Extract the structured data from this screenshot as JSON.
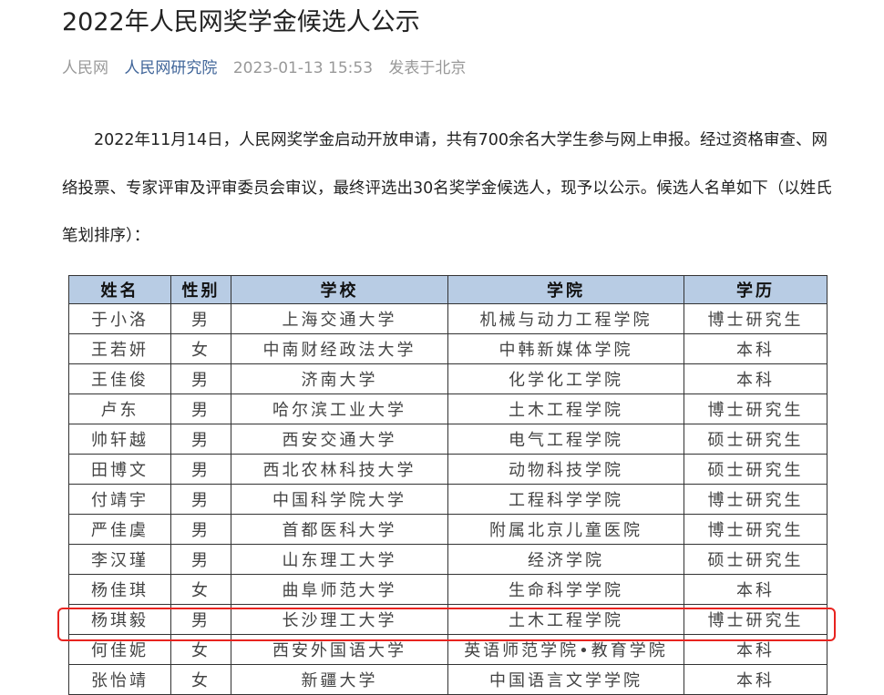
{
  "article": {
    "title": "2022年人民网奖学金候选人公示",
    "source": "人民网",
    "author": "人民网研究院",
    "datetime": "2023-01-13 15:53",
    "location": "发表于北京",
    "paragraph": "2022年11月14日，人民网奖学金启动开放申请，共有700余名大学生参与网上申报。经过资格审查、网络投票、专家评审及评审委员会审议，最终评选出30名奖学金候选人，现予以公示。候选人名单如下（以姓氏笔划排序）："
  },
  "table": {
    "headers": [
      "姓名",
      "性别",
      "学校",
      "学院",
      "学历"
    ],
    "header_color": "#b8cce4",
    "rows": [
      [
        "于小洛",
        "男",
        "上海交通大学",
        "机械与动力工程学院",
        "博士研究生"
      ],
      [
        "王若妍",
        "女",
        "中南财经政法大学",
        "中韩新媒体学院",
        "本科"
      ],
      [
        "王佳俊",
        "男",
        "济南大学",
        "化学化工学院",
        "本科"
      ],
      [
        "卢东",
        "男",
        "哈尔滨工业大学",
        "土木工程学院",
        "博士研究生"
      ],
      [
        "帅轩越",
        "男",
        "西安交通大学",
        "电气工程学院",
        "硕士研究生"
      ],
      [
        "田博文",
        "男",
        "西北农林科技大学",
        "动物科技学院",
        "硕士研究生"
      ],
      [
        "付靖宇",
        "男",
        "中国科学院大学",
        "工程科学学院",
        "博士研究生"
      ],
      [
        "严佳虞",
        "男",
        "首都医科大学",
        "附属北京儿童医院",
        "博士研究生"
      ],
      [
        "李汉瑾",
        "男",
        "山东理工大学",
        "经济学院",
        "硕士研究生"
      ],
      [
        "杨佳琪",
        "女",
        "曲阜师范大学",
        "生命科学学院",
        "本科"
      ],
      [
        "杨琪毅",
        "男",
        "长沙理工大学",
        "土木工程学院",
        "博士研究生"
      ],
      [
        "何佳妮",
        "女",
        "西安外国语大学",
        "英语师范学院•教育学院",
        "本科"
      ],
      [
        "张怡靖",
        "女",
        "新疆大学",
        "中国语言文学学院",
        "本科"
      ]
    ],
    "highlighted_row": "杨琪毅",
    "highlight_color": "#e8231f"
  }
}
